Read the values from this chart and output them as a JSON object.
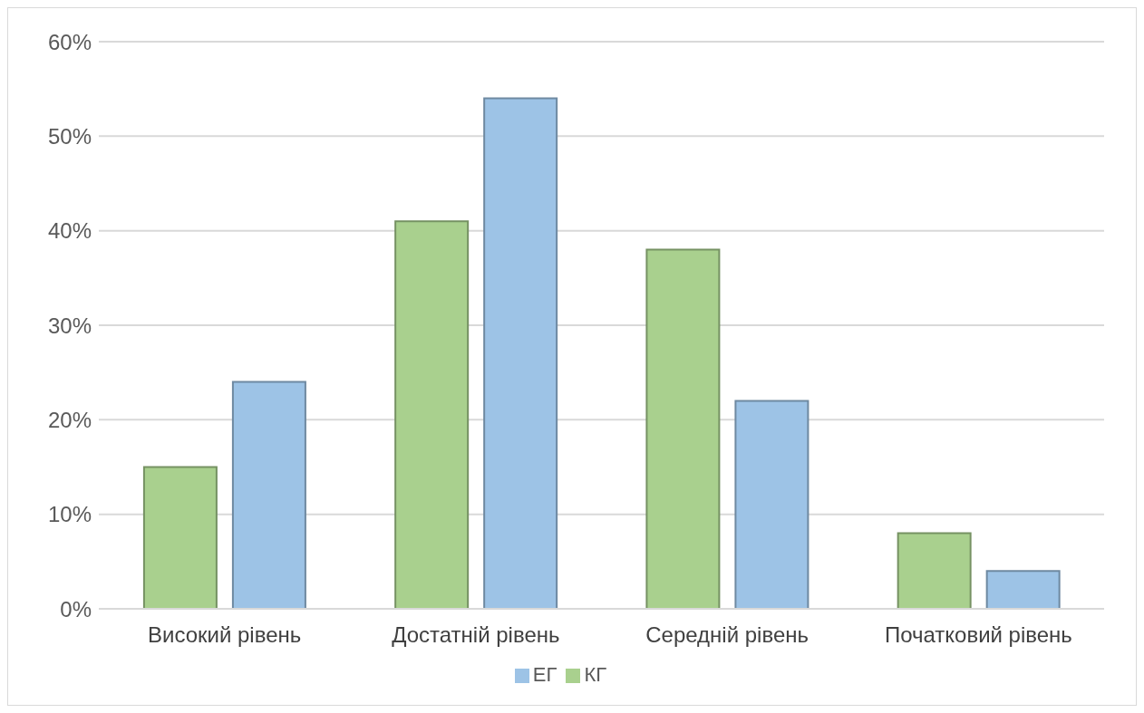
{
  "chart_data": {
    "type": "bar",
    "categories": [
      "Високий рівень",
      "Достатній рівень",
      "Середній рівень",
      "Початковий рівень"
    ],
    "series": [
      {
        "name": "КГ",
        "color": "#a9d08e",
        "values": [
          15,
          41,
          38,
          8
        ]
      },
      {
        "name": "ЕГ",
        "color": "#9dc3e6",
        "values": [
          24,
          54,
          22,
          4
        ]
      }
    ],
    "ylim": [
      0,
      60
    ],
    "yticks": [
      {
        "value": 0,
        "label": "0%"
      },
      {
        "value": 10,
        "label": "10%"
      },
      {
        "value": 20,
        "label": "20%"
      },
      {
        "value": 30,
        "label": "30%"
      },
      {
        "value": 40,
        "label": "40%"
      },
      {
        "value": 50,
        "label": "50%"
      },
      {
        "value": 60,
        "label": "60%"
      }
    ],
    "grid": "y",
    "legend": "bottom"
  }
}
